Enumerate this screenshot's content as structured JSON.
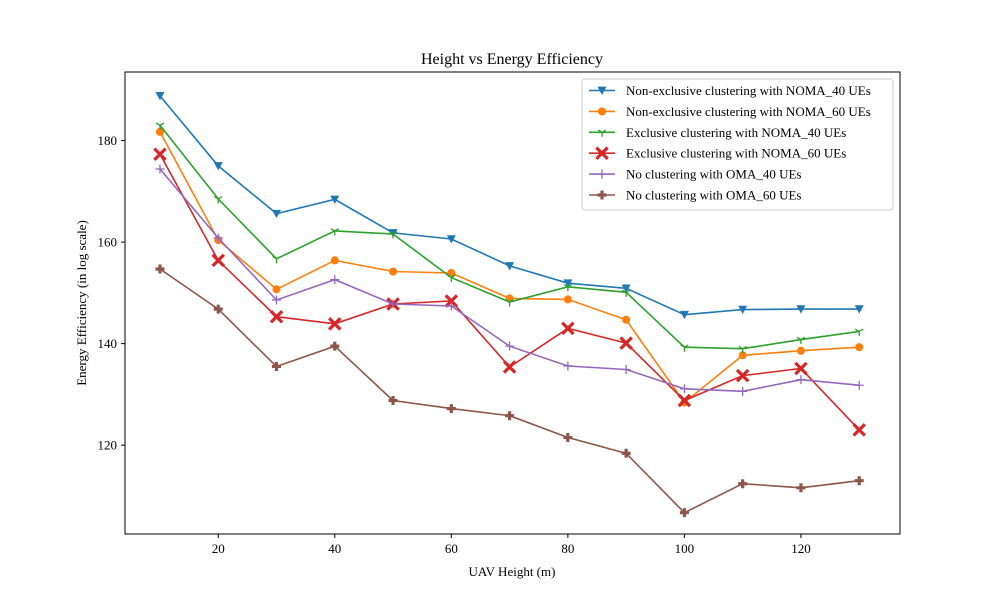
{
  "chart_data": {
    "type": "line",
    "title": "Height vs Energy Efficiency",
    "xlabel": "UAV Height (m)",
    "ylabel": "Energy Efficiency (in log scale)",
    "xlim": [
      4,
      137
    ],
    "ylim": [
      102.5,
      193.5
    ],
    "xticks": [
      20,
      40,
      60,
      80,
      100,
      120
    ],
    "yticks": [
      120,
      140,
      160,
      180
    ],
    "grid": false,
    "legend_position": "top-right",
    "x": [
      10,
      20,
      30,
      40,
      50,
      60,
      70,
      80,
      90,
      100,
      110,
      120,
      130
    ],
    "series": [
      {
        "name": "Non-exclusive clustering with NOMA_40 UEs",
        "color": "#1f77b4",
        "marker": "triangle-down",
        "values": [
          188.8,
          175.0,
          165.6,
          168.4,
          161.8,
          160.6,
          155.3,
          151.9,
          150.9,
          145.7,
          146.7,
          146.8,
          146.8
        ]
      },
      {
        "name": "Non-exclusive clustering with NOMA_60 UEs",
        "color": "#ff7f0e",
        "marker": "circle",
        "values": [
          181.7,
          160.4,
          150.7,
          156.4,
          154.2,
          153.9,
          148.9,
          148.7,
          144.7,
          128.4,
          137.7,
          138.6,
          139.3
        ]
      },
      {
        "name": "Exclusive clustering with NOMA_40 UEs",
        "color": "#2ca02c",
        "marker": "tri-down",
        "values": [
          183.0,
          168.5,
          156.7,
          162.2,
          161.6,
          153.0,
          148.2,
          151.2,
          150.1,
          139.3,
          139.0,
          140.8,
          142.4
        ]
      },
      {
        "name": "Exclusive clustering with NOMA_60 UEs",
        "color": "#d62728",
        "marker": "x-filled",
        "values": [
          177.3,
          156.4,
          145.3,
          143.9,
          147.8,
          148.4,
          135.4,
          143.0,
          140.1,
          128.8,
          133.7,
          135.1,
          123.0
        ]
      },
      {
        "name": "No clustering with OMA_40 UEs",
        "color": "#9467bd",
        "marker": "plus",
        "values": [
          174.4,
          160.8,
          148.6,
          152.6,
          147.8,
          147.4,
          139.5,
          135.6,
          134.9,
          131.1,
          130.6,
          132.9,
          131.8
        ]
      },
      {
        "name": "No clustering with OMA_60 UEs",
        "color": "#8c564b",
        "marker": "plus-filled",
        "values": [
          154.7,
          146.8,
          135.5,
          139.5,
          128.8,
          127.2,
          125.8,
          121.5,
          118.4,
          106.7,
          112.4,
          111.6,
          113.0
        ]
      }
    ]
  }
}
